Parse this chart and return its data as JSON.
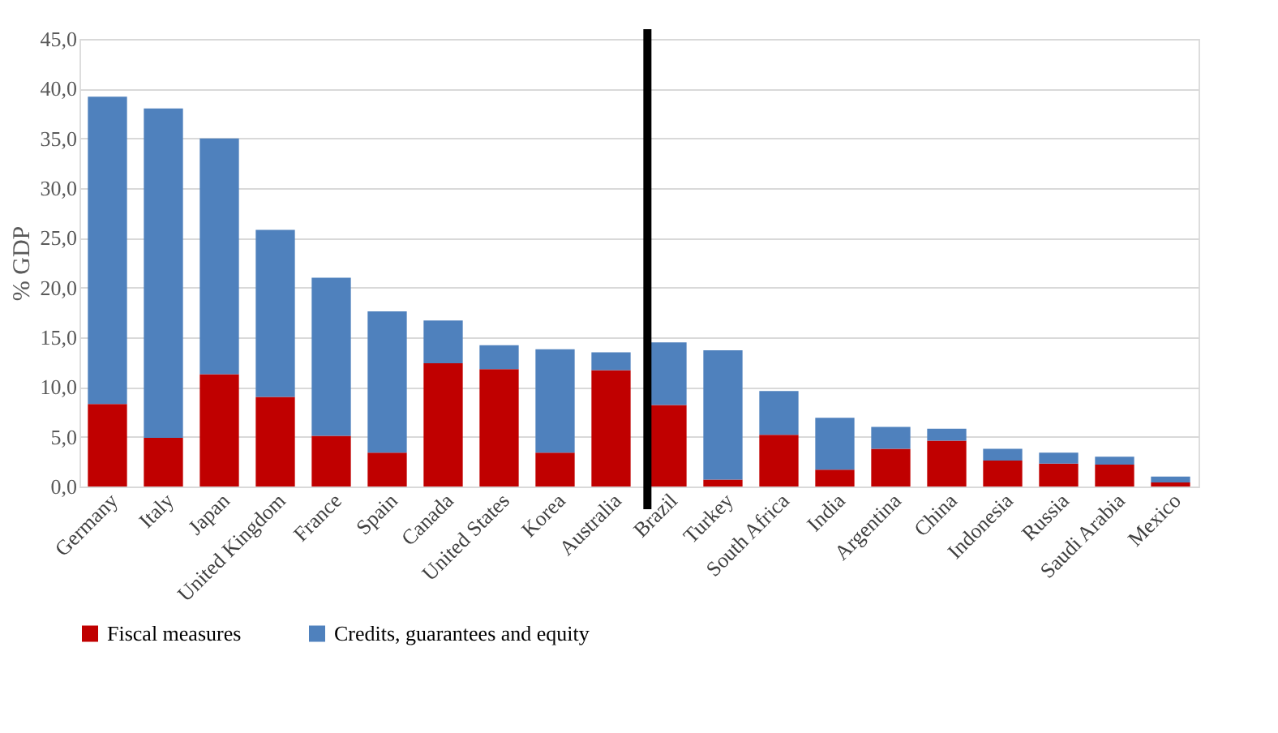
{
  "chart_data": {
    "type": "bar",
    "stacked": true,
    "ylabel": "% GDP",
    "categories": [
      "Germany",
      "Italy",
      "Japan",
      "United Kingdom",
      "France",
      "Spain",
      "Canada",
      "United States",
      "Korea",
      "Australia",
      "Brazil",
      "Turkey",
      "South Africa",
      "India",
      "Argentina",
      "China",
      "Indonesia",
      "Russia",
      "Saudi Arabia",
      "Mexico"
    ],
    "series": [
      {
        "name": "Fiscal measures",
        "color": "#c00000",
        "values": [
          8.3,
          4.9,
          11.3,
          9.0,
          5.1,
          3.4,
          12.4,
          11.8,
          3.4,
          11.7,
          8.2,
          0.7,
          5.2,
          1.7,
          3.8,
          4.6,
          2.6,
          2.3,
          2.2,
          0.4
        ]
      },
      {
        "name": "Credits, guarantees and equity",
        "color": "#4f81bd",
        "values": [
          30.9,
          33.1,
          23.7,
          16.8,
          15.9,
          14.2,
          4.3,
          2.4,
          10.4,
          1.8,
          6.3,
          13.0,
          4.4,
          5.2,
          2.2,
          1.2,
          1.2,
          1.1,
          0.8,
          0.6
        ]
      }
    ],
    "ylim": [
      0,
      45
    ],
    "yticks": [
      {
        "value": 0,
        "label": "0,0"
      },
      {
        "value": 5,
        "label": "5,0"
      },
      {
        "value": 10,
        "label": "10,0"
      },
      {
        "value": 15,
        "label": "15,0"
      },
      {
        "value": 20,
        "label": "20,0"
      },
      {
        "value": 25,
        "label": "25,0"
      },
      {
        "value": 30,
        "label": "30,0"
      },
      {
        "value": 35,
        "label": "35,0"
      },
      {
        "value": 40,
        "label": "40,0"
      },
      {
        "value": 45,
        "label": "45,0"
      }
    ],
    "ref_lines": [
      {
        "axis": "x",
        "value": "Brazil",
        "color": "#000000"
      }
    ],
    "grid": "y",
    "legend": "bottom"
  }
}
